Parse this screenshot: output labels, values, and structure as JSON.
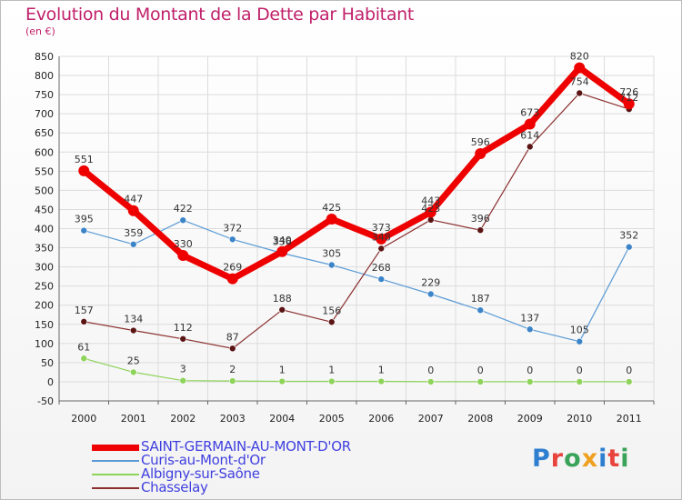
{
  "chart_data": {
    "type": "line",
    "title": "Evolution du Montant de la Dette par Habitant",
    "subtitle": "(en €)",
    "x": [
      "2000",
      "2001",
      "2002",
      "2003",
      "2004",
      "2005",
      "2006",
      "2007",
      "2008",
      "2009",
      "2010",
      "2011"
    ],
    "ylim": [
      -50,
      850
    ],
    "yticks": [
      -50,
      0,
      50,
      100,
      150,
      200,
      250,
      300,
      350,
      400,
      450,
      500,
      550,
      600,
      650,
      700,
      750,
      800,
      850
    ],
    "grid": true,
    "legend_position": "bottom-left",
    "series": [
      {
        "name": "SAINT-GERMAIN-AU-MONT-D'OR",
        "color": "#ee0000",
        "values": [
          551,
          447,
          330,
          269,
          340,
          425,
          373,
          443,
          596,
          673,
          820,
          726
        ],
        "labels": [
          "551",
          "447",
          "330",
          "269",
          "340",
          "425",
          "373",
          "443",
          "596",
          "673",
          "820",
          "726"
        ]
      },
      {
        "name": "Curis-au-Mont-d'Or",
        "color": "#5b9bd5",
        "values": [
          395,
          359,
          422,
          372,
          336,
          305,
          268,
          229,
          187,
          137,
          105,
          352
        ],
        "labels": [
          "395",
          "359",
          "422",
          "372",
          "336",
          "305",
          "268",
          "229",
          "187",
          "137",
          "105",
          "352"
        ]
      },
      {
        "name": "Albigny-sur-Saône",
        "color": "#8ed35a",
        "values": [
          61,
          25,
          3,
          2,
          1,
          1,
          1,
          0,
          0,
          0,
          0,
          0
        ],
        "labels": [
          "61",
          "25",
          "3",
          "2",
          "1",
          "1",
          "1",
          "0",
          "0",
          "0",
          "0",
          "0"
        ]
      },
      {
        "name": "Chasselay",
        "color": "#8b2f2f",
        "values": [
          157,
          134,
          112,
          87,
          188,
          156,
          348,
          423,
          396,
          614,
          754,
          712
        ],
        "labels": [
          "157",
          "134",
          "112",
          "87",
          "188",
          "156",
          "348",
          "423",
          "396",
          "614",
          "754",
          "712"
        ]
      }
    ]
  },
  "logo": {
    "text": "Proxiti",
    "letter_colors": [
      "#2f7fd0",
      "#e8433c",
      "#3aa35a",
      "#f0a020",
      "#2f7fd0",
      "#e8433c",
      "#3aa35a"
    ]
  }
}
